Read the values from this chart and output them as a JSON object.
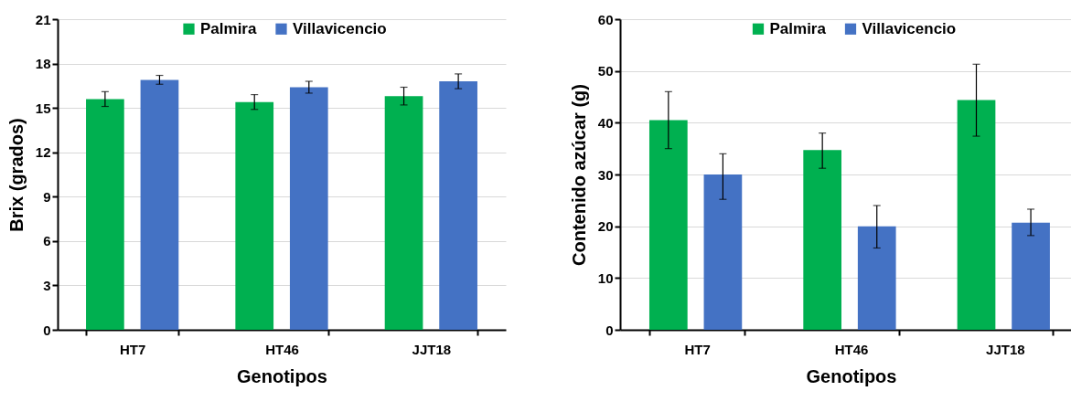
{
  "chart_data": [
    {
      "type": "bar",
      "xlabel": "Genotipos",
      "ylabel": "Brix (grados)",
      "categories": [
        "HT7",
        "HT46",
        "JJT18"
      ],
      "ylim": [
        0,
        21
      ],
      "yticks": [
        0,
        3,
        6,
        9,
        12,
        15,
        18,
        21
      ],
      "grid": "y",
      "legend": "top",
      "series": [
        {
          "name": "Palmira",
          "color": "#00b050",
          "values": [
            15.6,
            15.4,
            15.8
          ],
          "errors": [
            0.5,
            0.5,
            0.6
          ]
        },
        {
          "name": "Villavicencio",
          "color": "#4472c4",
          "values": [
            16.9,
            16.4,
            16.8
          ],
          "errors": [
            0.3,
            0.4,
            0.5
          ]
        }
      ]
    },
    {
      "type": "bar",
      "xlabel": "Genotipos",
      "ylabel": "Contenido azúcar (g)",
      "categories": [
        "HT7",
        "HT46",
        "JJT18"
      ],
      "ylim": [
        0,
        60
      ],
      "yticks": [
        0,
        10,
        20,
        30,
        40,
        50,
        60
      ],
      "grid": "y",
      "legend": "top",
      "series": [
        {
          "name": "Palmira",
          "color": "#00b050",
          "values": [
            40.5,
            34.7,
            44.4
          ],
          "errors": [
            [
              35,
              46
            ],
            [
              31.2,
              38
            ],
            [
              37.4,
              51.3
            ]
          ]
        },
        {
          "name": "Villavicencio",
          "color": "#4472c4",
          "values": [
            30,
            20,
            20.7
          ],
          "errors": [
            [
              25.2,
              34
            ],
            [
              15.8,
              24
            ],
            [
              18.2,
              23.3
            ]
          ]
        }
      ]
    }
  ]
}
